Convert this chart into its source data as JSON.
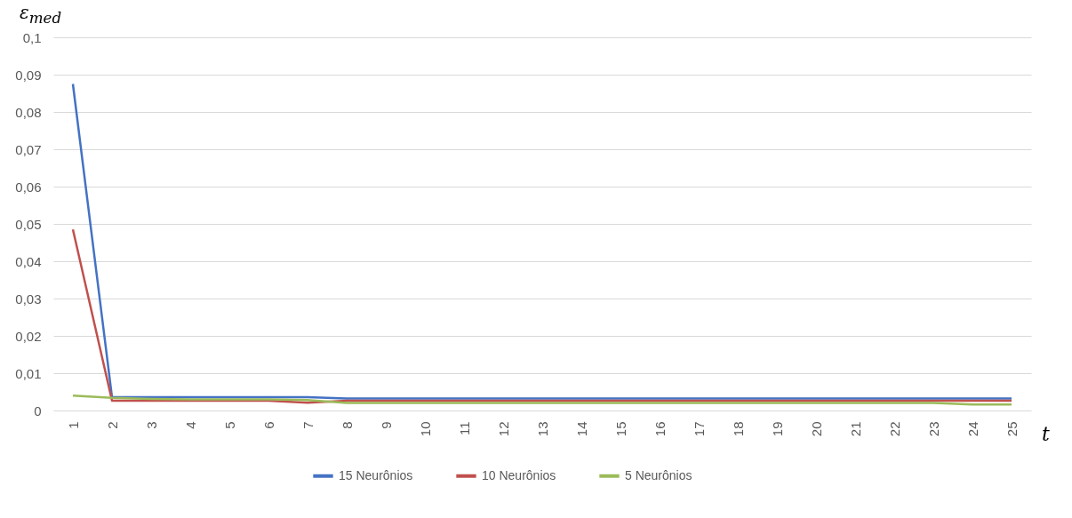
{
  "chart_data": {
    "type": "line",
    "ylabel": "ε$_{med}$",
    "xlabel": "t",
    "categories": [
      "1",
      "2",
      "3",
      "4",
      "5",
      "6",
      "7",
      "8",
      "9",
      "10",
      "11",
      "12",
      "13",
      "14",
      "15",
      "16",
      "17",
      "18",
      "19",
      "20",
      "21",
      "22",
      "23",
      "24",
      "25"
    ],
    "series": [
      {
        "name": "15 Neurônios",
        "color": "#4472c4",
        "values": [
          0.0875,
          0.0036,
          0.0036,
          0.0036,
          0.0036,
          0.0036,
          0.0036,
          0.0032,
          0.0032,
          0.0032,
          0.0032,
          0.0032,
          0.0032,
          0.0032,
          0.0032,
          0.0032,
          0.0032,
          0.0032,
          0.0032,
          0.0032,
          0.0032,
          0.0032,
          0.0032,
          0.0032,
          0.0032
        ]
      },
      {
        "name": "10 Neurônios",
        "color": "#c0504d",
        "values": [
          0.0485,
          0.0026,
          0.0026,
          0.0026,
          0.0026,
          0.0026,
          0.0021,
          0.0026,
          0.0026,
          0.0026,
          0.0026,
          0.0026,
          0.0026,
          0.0026,
          0.0026,
          0.0026,
          0.0026,
          0.0026,
          0.0026,
          0.0026,
          0.0026,
          0.0026,
          0.0026,
          0.0026,
          0.0026
        ]
      },
      {
        "name": "5 Neurônios",
        "color": "#9bbb59",
        "values": [
          0.004,
          0.0034,
          0.0031,
          0.003,
          0.003,
          0.003,
          0.0028,
          0.002,
          0.002,
          0.002,
          0.002,
          0.002,
          0.002,
          0.002,
          0.002,
          0.002,
          0.002,
          0.002,
          0.002,
          0.002,
          0.002,
          0.002,
          0.002,
          0.0016,
          0.0016
        ]
      }
    ],
    "ylim": [
      0,
      0.1
    ],
    "yticks": [
      0,
      {
        "value": 0.01,
        "label": "0,01"
      },
      {
        "value": 0.02,
        "label": "0,02"
      },
      {
        "value": 0.03,
        "label": "0,03"
      },
      {
        "value": 0.04,
        "label": "0,04"
      },
      {
        "value": 0.05,
        "label": "0,05"
      },
      {
        "value": 0.06,
        "label": "0,06"
      },
      {
        "value": 0.07,
        "label": "0,07"
      },
      {
        "value": 0.08,
        "label": "0,08"
      },
      {
        "value": 0.09,
        "label": "0,09"
      },
      {
        "value": 0.1,
        "label": "0,1"
      }
    ],
    "grid": "y",
    "legend": "bottom",
    "marker": "none",
    "line_style": "solid"
  }
}
